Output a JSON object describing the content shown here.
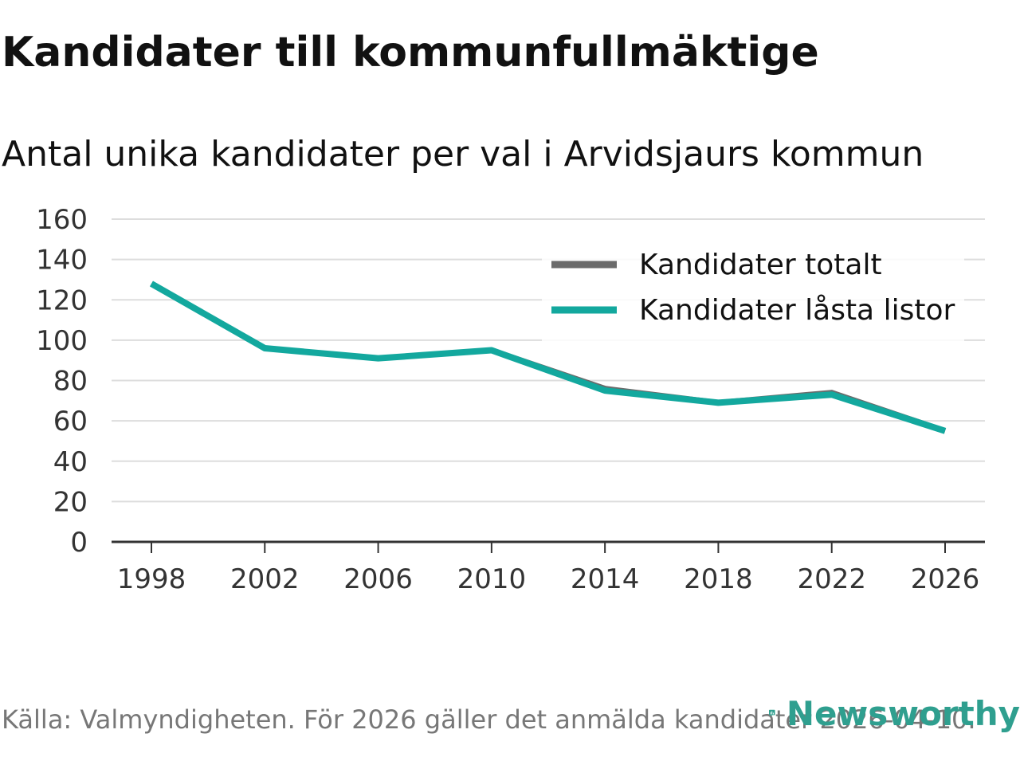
{
  "header": {
    "title": "Kandidater till kommunfullmäktige",
    "subtitle": "Antal unika kandidater per val i Arvidsjaurs kommun"
  },
  "footer": {
    "source": "Källa: Valmyndigheten. För 2026 gäller det anmälda kandidater 2026-04-10.",
    "brand": "Newsworthy"
  },
  "colors": {
    "total": "#6b6b6b",
    "locked": "#13a89e",
    "grid": "#dddddd",
    "axis": "#333333",
    "brand": "#2f9f8f"
  },
  "chart_data": {
    "type": "line",
    "title": "Kandidater till kommunfullmäktige",
    "subtitle": "Antal unika kandidater per val i Arvidsjaurs kommun",
    "xlabel": "",
    "ylabel": "",
    "categories": [
      "1998",
      "2002",
      "2006",
      "2010",
      "2014",
      "2018",
      "2022",
      "2026"
    ],
    "y_ticks": [
      0,
      20,
      40,
      60,
      80,
      100,
      120,
      140,
      160
    ],
    "ylim": [
      0,
      160
    ],
    "grid": true,
    "legend_position": "top-right",
    "series": [
      {
        "name": "Kandidater totalt",
        "color": "#6b6b6b",
        "values": [
          128,
          96,
          91,
          95,
          76,
          69,
          74,
          55
        ]
      },
      {
        "name": "Kandidater låsta listor",
        "color": "#13a89e",
        "values": [
          128,
          96,
          91,
          95,
          75,
          69,
          73,
          55
        ]
      }
    ]
  }
}
